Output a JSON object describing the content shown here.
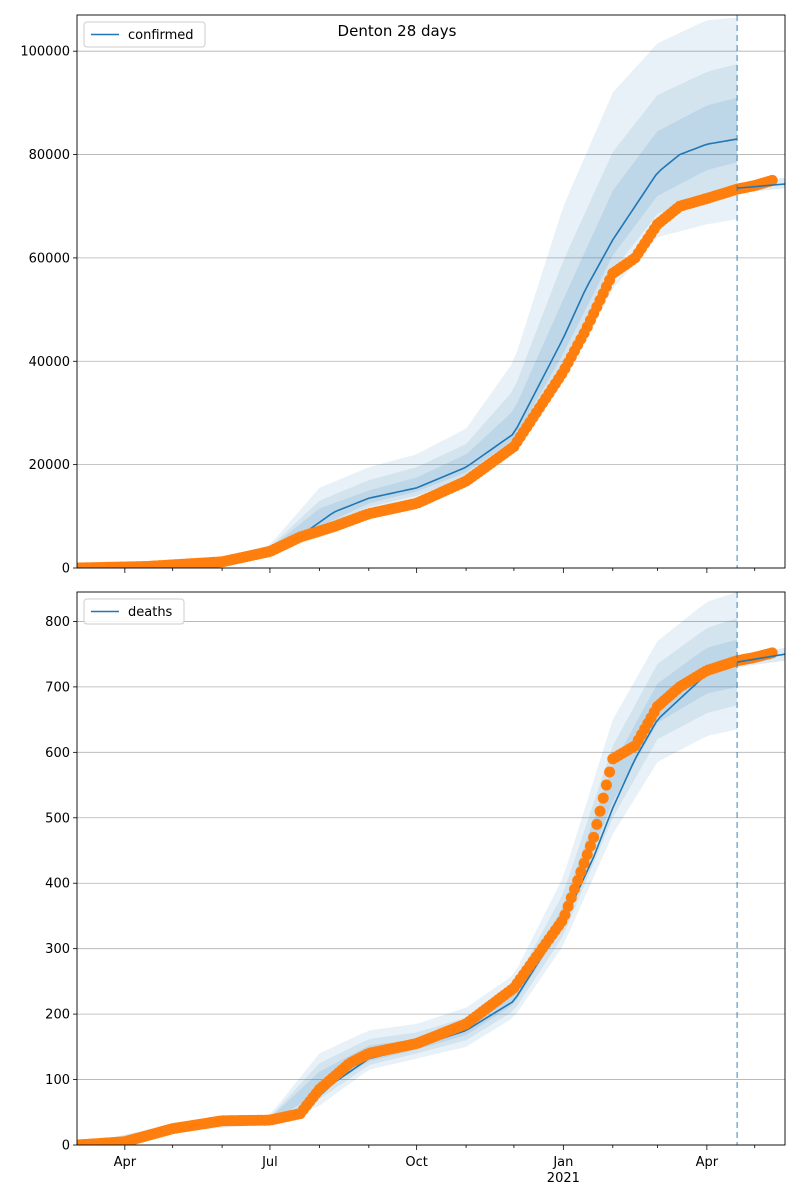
{
  "chart_data": [
    {
      "type": "line",
      "title": "Denton 28 days",
      "xlabel": "",
      "ylabel": "",
      "ylim": [
        0,
        107000
      ],
      "xlim": [
        "2020-03-02",
        "2021-05-20"
      ],
      "y_ticks": [
        0,
        20000,
        40000,
        60000,
        80000,
        100000
      ],
      "grid": "horizontal",
      "legend": {
        "placement": "top-left",
        "entries": [
          "confirmed"
        ]
      },
      "forecast_marker_date": "2021-04-20",
      "series": [
        {
          "name": "confirmed",
          "style": "model-line",
          "color": "#1f77b4",
          "x": [
            "2020-03-02",
            "2020-04-15",
            "2020-06-01",
            "2020-07-01",
            "2020-07-20",
            "2020-08-10",
            "2020-09-01",
            "2020-10-01",
            "2020-11-01",
            "2020-12-01",
            "2021-01-01",
            "2021-01-15",
            "2021-02-01",
            "2021-02-15",
            "2021-03-01",
            "2021-03-15",
            "2021-04-01",
            "2021-04-20"
          ],
          "y": [
            0,
            300,
            1200,
            3500,
            6200,
            10800,
            13500,
            15500,
            19500,
            26000,
            44500,
            54000,
            63500,
            70000,
            76500,
            80000,
            82000,
            83000
          ]
        },
        {
          "name": "observed",
          "style": "markers",
          "color": "#ff7f0e",
          "x": [
            "2020-03-02",
            "2020-04-15",
            "2020-06-01",
            "2020-07-01",
            "2020-07-20",
            "2020-08-10",
            "2020-09-01",
            "2020-10-01",
            "2020-11-01",
            "2020-12-01",
            "2021-01-01",
            "2021-01-15",
            "2021-02-01",
            "2021-02-15",
            "2021-03-01",
            "2021-03-15",
            "2021-04-01",
            "2021-04-20",
            "2021-05-01",
            "2021-05-12"
          ],
          "y": [
            0,
            300,
            1200,
            3200,
            6000,
            8000,
            10500,
            12500,
            16800,
            23500,
            38000,
            46000,
            57000,
            60000,
            66500,
            70000,
            71500,
            73300,
            74000,
            75000
          ]
        }
      ],
      "bands": [
        {
          "x": [
            "2020-03-02",
            "2020-06-01",
            "2020-07-01",
            "2020-08-01",
            "2020-09-01",
            "2020-10-01",
            "2020-11-01",
            "2020-12-01",
            "2021-01-01",
            "2021-02-01",
            "2021-03-01",
            "2021-04-01",
            "2021-04-20"
          ],
          "low": [
            0,
            1000,
            2800,
            6500,
            11000,
            13000,
            16000,
            22000,
            36000,
            54000,
            64000,
            66500,
            67500
          ],
          "high": [
            0,
            1600,
            4500,
            15500,
            19500,
            22000,
            27000,
            40000,
            70000,
            92000,
            101500,
            106000,
            106500
          ],
          "opacity": 0.1
        },
        {
          "x": [
            "2020-03-02",
            "2020-06-01",
            "2020-07-01",
            "2020-08-01",
            "2020-09-01",
            "2020-10-01",
            "2020-11-01",
            "2020-12-01",
            "2021-01-01",
            "2021-02-01",
            "2021-03-01",
            "2021-04-01",
            "2021-04-20"
          ],
          "low": [
            0,
            1050,
            3000,
            7000,
            11800,
            14000,
            17500,
            23500,
            39500,
            57500,
            68500,
            72500,
            73500
          ],
          "high": [
            0,
            1450,
            4100,
            13000,
            17000,
            19500,
            24000,
            34500,
            59500,
            80500,
            91500,
            96000,
            97500
          ],
          "opacity": 0.1
        },
        {
          "x": [
            "2020-03-02",
            "2020-06-01",
            "2020-07-01",
            "2020-08-01",
            "2020-09-01",
            "2020-10-01",
            "2020-11-01",
            "2020-12-01",
            "2021-01-01",
            "2021-02-01",
            "2021-03-01",
            "2021-04-01",
            "2021-04-20"
          ],
          "low": [
            0,
            1100,
            3200,
            8000,
            12500,
            14800,
            18500,
            24800,
            41500,
            60500,
            72000,
            77000,
            78500
          ],
          "high": [
            0,
            1350,
            3800,
            11500,
            15000,
            17500,
            22000,
            30500,
            52000,
            73000,
            84500,
            89500,
            91000
          ],
          "opacity": 0.12
        },
        {
          "x": [
            "2021-04-20",
            "2021-05-20"
          ],
          "low": [
            72500,
            73500
          ],
          "high": [
            74500,
            75500
          ],
          "opacity": 0.15
        }
      ],
      "tail_line": {
        "x": [
          "2021-04-20",
          "2021-05-20"
        ],
        "y": [
          73500,
          74300
        ]
      }
    },
    {
      "type": "line",
      "title": "",
      "xlabel": "",
      "ylabel": "",
      "ylim": [
        0,
        845
      ],
      "xlim": [
        "2020-03-02",
        "2021-05-20"
      ],
      "y_ticks": [
        0,
        100,
        200,
        300,
        400,
        500,
        600,
        700,
        800
      ],
      "x_tick_labels": [
        {
          "date": "2020-04-01",
          "label": "Apr",
          "sub": ""
        },
        {
          "date": "2020-07-01",
          "label": "Jul",
          "sub": ""
        },
        {
          "date": "2020-10-01",
          "label": "Oct",
          "sub": ""
        },
        {
          "date": "2021-01-01",
          "label": "Jan",
          "sub": "2021"
        },
        {
          "date": "2021-04-01",
          "label": "Apr",
          "sub": ""
        }
      ],
      "grid": "horizontal",
      "legend": {
        "placement": "top-left",
        "entries": [
          "deaths"
        ]
      },
      "forecast_marker_date": "2021-04-20",
      "series": [
        {
          "name": "deaths",
          "style": "model-line",
          "color": "#1f77b4",
          "x": [
            "2020-03-02",
            "2020-04-01",
            "2020-05-01",
            "2020-06-01",
            "2020-07-01",
            "2020-07-20",
            "2020-08-10",
            "2020-09-01",
            "2020-10-01",
            "2020-11-01",
            "2020-12-01",
            "2021-01-01",
            "2021-01-20",
            "2021-02-01",
            "2021-02-15",
            "2021-03-01",
            "2021-04-01",
            "2021-04-20"
          ],
          "y": [
            0,
            5,
            25,
            37,
            38,
            48,
            95,
            132,
            150,
            175,
            220,
            340,
            440,
            515,
            590,
            650,
            720,
            735
          ]
        },
        {
          "name": "observed",
          "style": "markers",
          "color": "#ff7f0e",
          "x": [
            "2020-03-02",
            "2020-04-01",
            "2020-05-01",
            "2020-06-01",
            "2020-07-01",
            "2020-07-20",
            "2020-08-01",
            "2020-08-20",
            "2020-09-01",
            "2020-10-01",
            "2020-11-01",
            "2020-12-01",
            "2021-01-01",
            "2021-01-20",
            "2021-02-01",
            "2021-02-15",
            "2021-03-01",
            "2021-03-15",
            "2021-04-01",
            "2021-04-20",
            "2021-05-01",
            "2021-05-12"
          ],
          "y": [
            0,
            5,
            25,
            37,
            38,
            48,
            85,
            125,
            140,
            155,
            185,
            240,
            345,
            470,
            590,
            610,
            670,
            700,
            725,
            740,
            745,
            752
          ]
        }
      ],
      "bands": [
        {
          "x": [
            "2020-03-02",
            "2020-05-01",
            "2020-07-01",
            "2020-08-01",
            "2020-09-01",
            "2020-10-01",
            "2020-11-01",
            "2020-12-01",
            "2021-01-01",
            "2021-02-01",
            "2021-03-01",
            "2021-04-01",
            "2021-04-20"
          ],
          "low": [
            0,
            20,
            32,
            60,
            115,
            132,
            150,
            195,
            305,
            475,
            585,
            625,
            635
          ],
          "high": [
            0,
            32,
            46,
            140,
            175,
            185,
            210,
            260,
            410,
            650,
            770,
            830,
            845
          ],
          "opacity": 0.1
        },
        {
          "x": [
            "2020-03-02",
            "2020-05-01",
            "2020-07-01",
            "2020-08-01",
            "2020-09-01",
            "2020-10-01",
            "2020-11-01",
            "2020-12-01",
            "2021-01-01",
            "2021-02-01",
            "2021-03-01",
            "2021-04-01",
            "2021-04-20"
          ],
          "low": [
            0,
            22,
            34,
            70,
            122,
            140,
            160,
            205,
            320,
            500,
            620,
            660,
            672
          ],
          "high": [
            0,
            30,
            43,
            125,
            162,
            172,
            195,
            245,
            385,
            610,
            735,
            790,
            805
          ],
          "opacity": 0.1
        },
        {
          "x": [
            "2020-03-02",
            "2020-05-01",
            "2020-07-01",
            "2020-08-01",
            "2020-09-01",
            "2020-10-01",
            "2020-11-01",
            "2020-12-01",
            "2021-01-01",
            "2021-02-01",
            "2021-03-01",
            "2021-04-01",
            "2021-04-20"
          ],
          "low": [
            0,
            23,
            35,
            80,
            128,
            146,
            168,
            215,
            335,
            525,
            645,
            690,
            700
          ],
          "high": [
            0,
            28,
            41,
            112,
            152,
            162,
            185,
            232,
            365,
            580,
            705,
            760,
            772
          ],
          "opacity": 0.12
        },
        {
          "x": [
            "2021-04-20",
            "2021-05-20"
          ],
          "low": [
            730,
            740
          ],
          "high": [
            745,
            760
          ],
          "opacity": 0.15
        }
      ],
      "tail_line": {
        "x": [
          "2021-04-20",
          "2021-05-20"
        ],
        "y": [
          738,
          750
        ]
      }
    }
  ]
}
